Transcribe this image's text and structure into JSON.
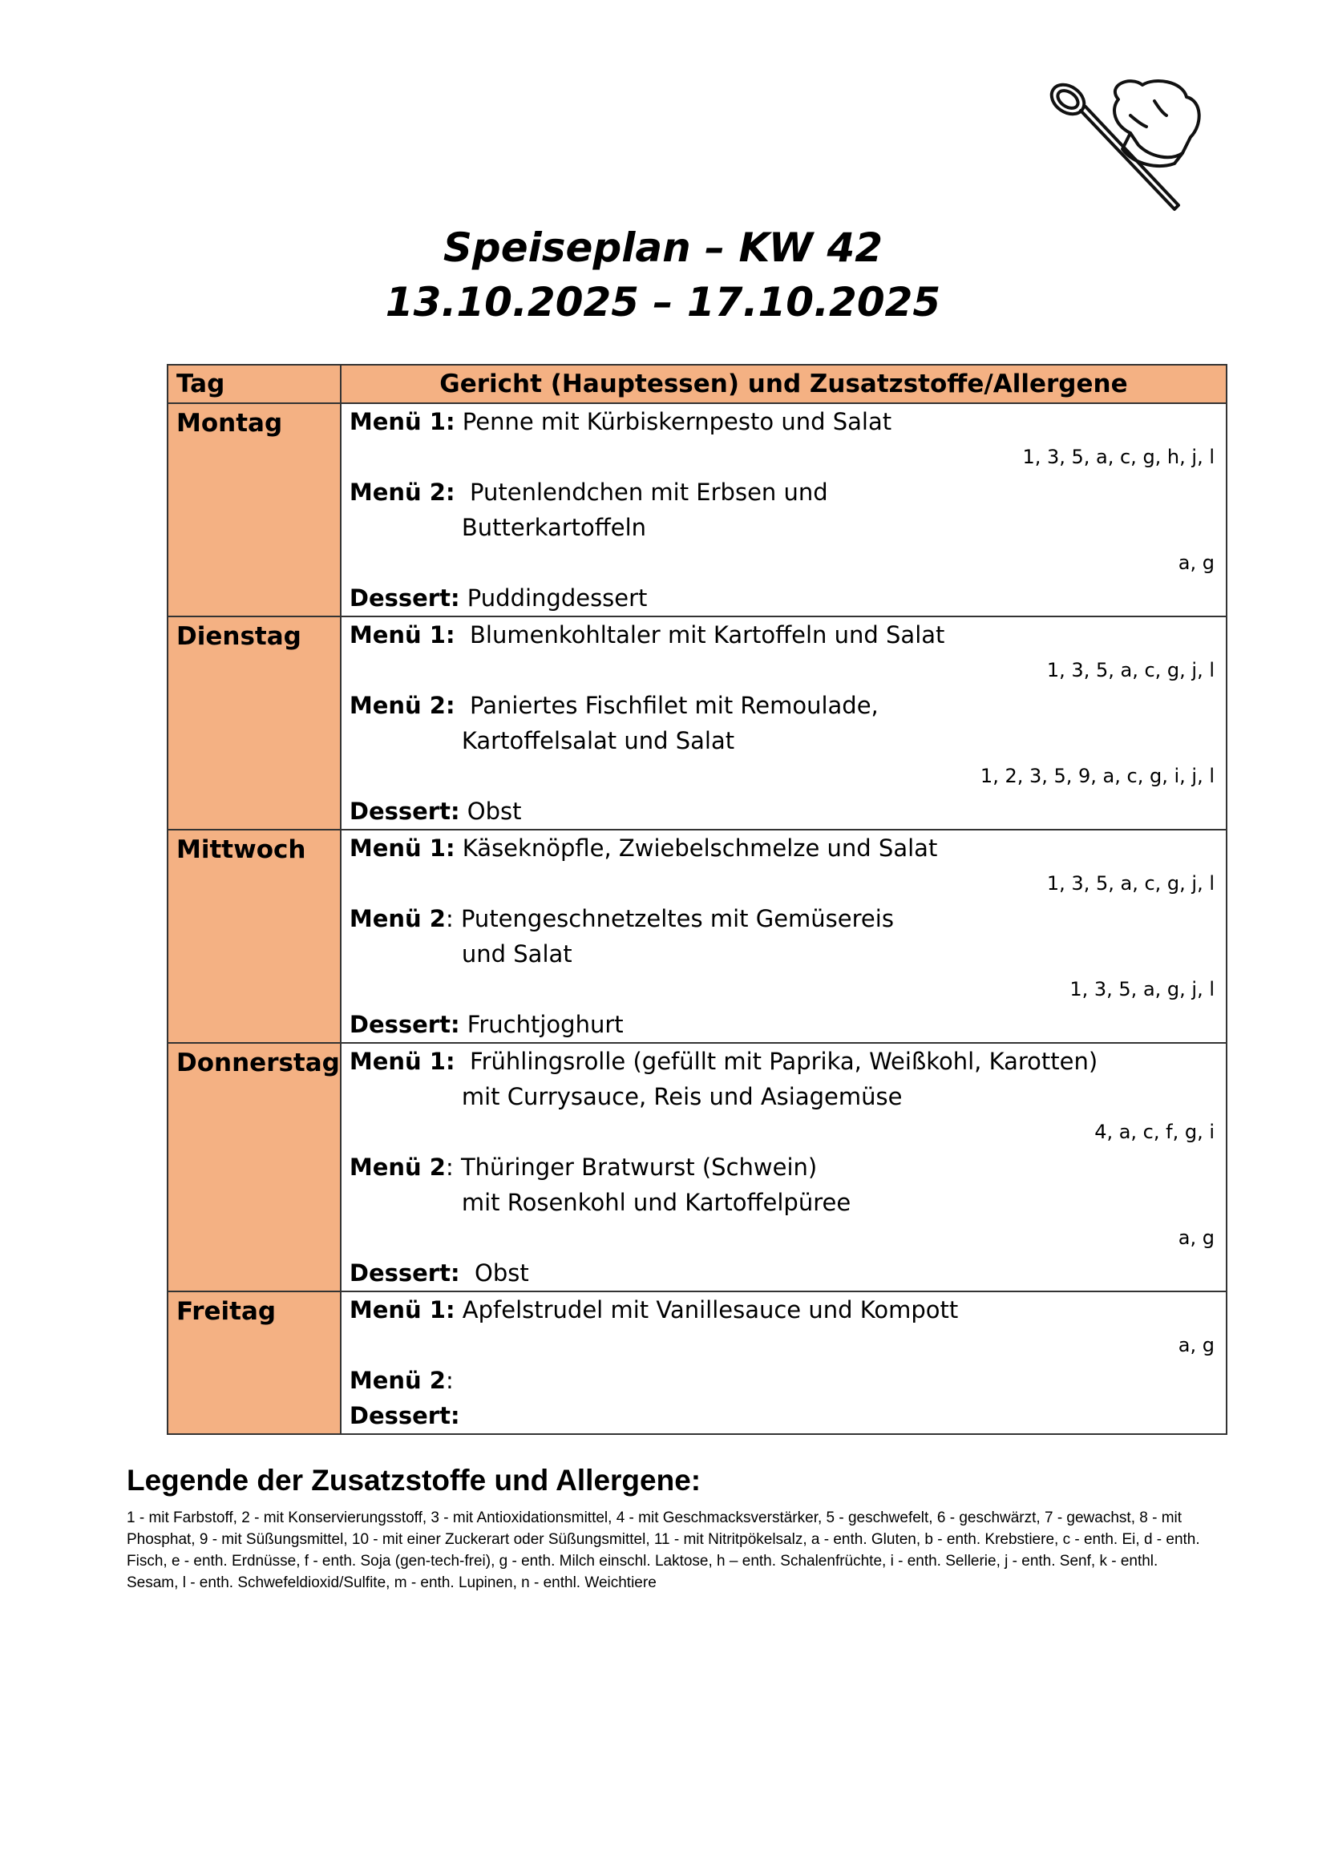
{
  "logo": {
    "icon": "chef-hat-spoon-icon"
  },
  "title": {
    "line1": "Speiseplan – KW 42",
    "line2": "13.10.2025 – 17.10.2025"
  },
  "table": {
    "headers": {
      "day": "Tag",
      "dish": "Gericht (Hauptessen) und Zusatzstoffe/Allergene"
    },
    "header_color": "#F4B183",
    "rows": [
      {
        "day": "Montag",
        "lines": [
          {
            "type": "item",
            "label": "Menü 1:",
            "text": " Penne mit Kürbiskernpesto und Salat"
          },
          {
            "type": "allergen",
            "text": "1, 3, 5, a, c, g, h, j, l"
          },
          {
            "type": "item",
            "label": "Menü 2:",
            "text": "  Putenlendchen mit Erbsen und"
          },
          {
            "type": "cont",
            "text": "Butterkartoffeln"
          },
          {
            "type": "allergen",
            "text": "a, g"
          },
          {
            "type": "item",
            "label": "Dessert:",
            "text": " Puddingdessert"
          }
        ]
      },
      {
        "day": "Dienstag",
        "lines": [
          {
            "type": "item",
            "label": "Menü 1:",
            "text": "  Blumenkohltaler mit Kartoffeln und Salat"
          },
          {
            "type": "allergen",
            "text": "1, 3, 5, a, c, g, j, l"
          },
          {
            "type": "item",
            "label": "Menü 2:",
            "text": "  Paniertes Fischfilet mit Remoulade,"
          },
          {
            "type": "cont",
            "text": "Kartoffelsalat und Salat"
          },
          {
            "type": "allergen",
            "text": "1, 2, 3, 5, 9, a, c, g, i, j, l"
          },
          {
            "type": "item",
            "label": "Dessert:",
            "text": " Obst"
          }
        ]
      },
      {
        "day": "Mittwoch",
        "lines": [
          {
            "type": "item",
            "label": "Menü 1:",
            "text": " Käseknöpfle, Zwiebelschmelze und Salat"
          },
          {
            "type": "allergen",
            "text": "1, 3, 5, a, c, g, j, l"
          },
          {
            "type": "item",
            "label": "Menü 2",
            "text": ": Putengeschnetzeltes mit Gemüsereis"
          },
          {
            "type": "cont",
            "text": "und Salat"
          },
          {
            "type": "allergen",
            "text": "1, 3, 5, a, g, j, l"
          },
          {
            "type": "item",
            "label": "Dessert:",
            "text": " Fruchtjoghurt"
          }
        ]
      },
      {
        "day": "Donnerstag",
        "lines": [
          {
            "type": "item",
            "label": "Menü 1:",
            "text": "  Frühlingsrolle (gefüllt mit Paprika, Weißkohl, Karotten)"
          },
          {
            "type": "cont",
            "text": "mit Currysauce, Reis und Asiagemüse"
          },
          {
            "type": "allergen",
            "text": "4, a, c, f, g, i"
          },
          {
            "type": "item",
            "label": "Menü 2",
            "text": ": Thüringer Bratwurst (Schwein)"
          },
          {
            "type": "cont",
            "text": "mit Rosenkohl und Kartoffelpüree"
          },
          {
            "type": "allergen",
            "text": "a, g"
          },
          {
            "type": "item",
            "label": "Dessert:",
            "text": "  Obst"
          }
        ]
      },
      {
        "day": "Freitag",
        "lines": [
          {
            "type": "item",
            "label": "Menü 1:",
            "text": " Apfelstrudel mit Vanillesauce und Kompott"
          },
          {
            "type": "allergen",
            "text": "a, g"
          },
          {
            "type": "item",
            "label": "Menü 2",
            "text": ":"
          },
          {
            "type": "item",
            "label": "Dessert:",
            "text": ""
          }
        ]
      }
    ]
  },
  "legend": {
    "title": "Legende der Zusatzstoffe und Allergene:",
    "text": "1 - mit Farbstoff, 2 - mit Konservierungsstoff, 3 - mit Antioxidationsmittel, 4 - mit Geschmacksverstärker, 5 - geschwefelt, 6 - geschwärzt, 7 - gewachst, 8 - mit Phosphat, 9 - mit Süßungsmittel, 10 - mit einer Zuckerart oder Süßungsmittel, 11 - mit Nitritpökelsalz, a - enth. Gluten, b - enth. Krebstiere, c - enth. Ei, d - enth. Fisch, e - enth. Erdnüsse, f - enth. Soja (gen-tech-frei), g - enth. Milch einschl. Laktose, h – enth. Schalenfrüchte, i - enth. Sellerie, j - enth. Senf, k - enthl. Sesam, l - enth. Schwefeldioxid/Sulfite, m - enth. Lupinen, n - enthl. Weichtiere"
  }
}
